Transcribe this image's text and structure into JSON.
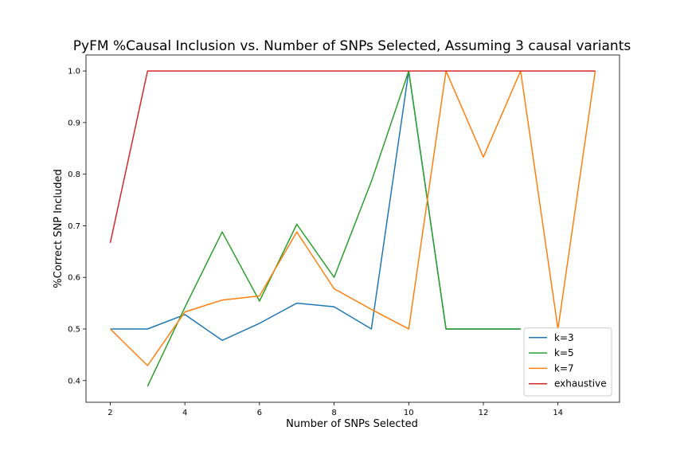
{
  "chart_data": {
    "type": "line",
    "title": "PyFM %Causal Inclusion vs. Number of SNPs Selected, Assuming 3 causal variants",
    "xlabel": "Number of SNPs Selected",
    "ylabel": "%Correct SNP Included",
    "xlim": [
      1.35,
      15.65
    ],
    "ylim": [
      0.358,
      1.031
    ],
    "xticks": [
      2,
      4,
      6,
      8,
      10,
      12,
      14
    ],
    "yticks": [
      0.4,
      0.5,
      0.6,
      0.7,
      0.8,
      0.9,
      1.0
    ],
    "xtick_labels": [
      "2",
      "4",
      "6",
      "8",
      "10",
      "12",
      "14"
    ],
    "ytick_labels": [
      "0.4",
      "0.5",
      "0.6",
      "0.7",
      "0.8",
      "0.9",
      "1.0"
    ],
    "grid": false,
    "legend_position": "lower-right",
    "series": [
      {
        "name": "k=3",
        "color": "#1f77b4",
        "x": [
          2,
          3,
          4,
          5,
          6,
          7,
          8,
          9,
          10,
          11,
          12,
          13
        ],
        "values": [
          0.5,
          0.5,
          0.528,
          0.478,
          0.511,
          0.55,
          0.543,
          0.5,
          1.0,
          0.5,
          0.5,
          0.5
        ]
      },
      {
        "name": "k=5",
        "color": "#2ca02c",
        "x": [
          3,
          4,
          5,
          6,
          7,
          8,
          9,
          10,
          11,
          12,
          13
        ],
        "values": [
          0.389,
          0.542,
          0.688,
          0.554,
          0.703,
          0.6,
          0.786,
          1.0,
          0.5,
          0.5,
          0.5
        ]
      },
      {
        "name": "k=7",
        "color": "#ff7f0e",
        "x": [
          2,
          3,
          4,
          5,
          6,
          7,
          8,
          9,
          10,
          11,
          12,
          13,
          14,
          15
        ],
        "values": [
          0.5,
          0.429,
          0.533,
          0.556,
          0.564,
          0.688,
          0.578,
          0.538,
          0.5,
          1.0,
          0.833,
          1.0,
          0.5,
          1.0
        ]
      },
      {
        "name": "exhaustive",
        "color": "#d62728",
        "x": [
          2,
          3,
          4,
          5,
          6,
          7,
          8,
          9,
          10,
          11,
          12,
          13,
          14,
          15
        ],
        "values": [
          0.667,
          1.0,
          1.0,
          1.0,
          1.0,
          1.0,
          1.0,
          1.0,
          1.0,
          1.0,
          1.0,
          1.0,
          1.0,
          1.0
        ]
      }
    ]
  }
}
